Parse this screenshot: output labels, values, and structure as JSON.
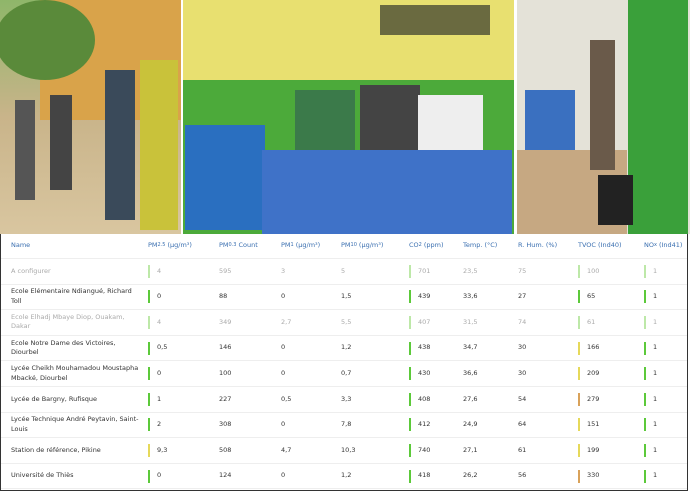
{
  "table": {
    "headers": [
      {
        "text": "Name"
      },
      {
        "text": "PM",
        "sub": "2.5",
        "unit": "(µg/m³)"
      },
      {
        "text": "PM",
        "sub": "0.3",
        "unit": "Count"
      },
      {
        "text": "PM",
        "sub": "1",
        "unit": "(µg/m³)"
      },
      {
        "text": "PM",
        "sub": "10",
        "unit": "(µg/m³)"
      },
      {
        "text": "CO",
        "sub": "2",
        "unit": "(ppm)"
      },
      {
        "text": "Temp. (°C)"
      },
      {
        "text": "R. Hum. (%)"
      },
      {
        "text": "TVOC (Ind40)"
      },
      {
        "text": "NO",
        "sub": "x",
        "unit": "(Ind41)"
      }
    ],
    "rows": [
      {
        "inactive": true,
        "cells": [
          "A configurer",
          {
            "v": "4",
            "color": "#bde8a8"
          },
          "595",
          "3",
          "5",
          {
            "v": "701",
            "color": "#bde8a8"
          },
          "23,5",
          "75",
          {
            "v": "100",
            "color": "#bde8a8"
          },
          {
            "v": "1",
            "color": "#bde8a8"
          }
        ]
      },
      {
        "cells": [
          "Ecole Elémentaire Ndiangué, Richard Toll",
          {
            "v": "0",
            "color": "#5cc93a"
          },
          "88",
          "0",
          "1,5",
          {
            "v": "439",
            "color": "#5cc93a"
          },
          "33,6",
          "27",
          {
            "v": "65",
            "color": "#5cc93a"
          },
          {
            "v": "1",
            "color": "#5cc93a"
          }
        ]
      },
      {
        "inactive": true,
        "cells": [
          "Ecole Elhadj Mbaye Diop, Ouakam, Dakar",
          {
            "v": "4",
            "color": "#bde8a8"
          },
          "349",
          "2,7",
          "5,5",
          {
            "v": "407",
            "color": "#bde8a8"
          },
          "31,5",
          "74",
          {
            "v": "61",
            "color": "#bde8a8"
          },
          {
            "v": "1",
            "color": "#bde8a8"
          }
        ]
      },
      {
        "cells": [
          "Ecole Notre Dame des Victoires, Diourbel",
          {
            "v": "0,5",
            "color": "#5cc93a"
          },
          "146",
          "0",
          "1,2",
          {
            "v": "438",
            "color": "#5cc93a"
          },
          "34,7",
          "30",
          {
            "v": "166",
            "color": "#e6d95a"
          },
          {
            "v": "1",
            "color": "#5cc93a"
          }
        ]
      },
      {
        "cells": [
          "Lycée Cheikh Mouhamadou Moustapha Mbacké, Diourbel",
          {
            "v": "0",
            "color": "#5cc93a"
          },
          "100",
          "0",
          "0,7",
          {
            "v": "430",
            "color": "#5cc93a"
          },
          "36,6",
          "30",
          {
            "v": "209",
            "color": "#e6d95a"
          },
          {
            "v": "1",
            "color": "#5cc93a"
          }
        ]
      },
      {
        "cells": [
          "Lycée de Bargny, Rufisque",
          {
            "v": "1",
            "color": "#5cc93a"
          },
          "227",
          "0,5",
          "3,3",
          {
            "v": "408",
            "color": "#5cc93a"
          },
          "27,6",
          "54",
          {
            "v": "279",
            "color": "#d9a25a"
          },
          {
            "v": "1",
            "color": "#5cc93a"
          }
        ]
      },
      {
        "cells": [
          "Lycée Technique André Peytavin, Saint-Louis",
          {
            "v": "2",
            "color": "#5cc93a"
          },
          "308",
          "0",
          "7,8",
          {
            "v": "412",
            "color": "#5cc93a"
          },
          "24,9",
          "64",
          {
            "v": "151",
            "color": "#e6d95a"
          },
          {
            "v": "1",
            "color": "#5cc93a"
          }
        ]
      },
      {
        "cells": [
          "Station de référence, Pikine",
          {
            "v": "9,3",
            "color": "#e6d95a"
          },
          "508",
          "4,7",
          "10,3",
          {
            "v": "740",
            "color": "#5cc93a"
          },
          "27,1",
          "61",
          {
            "v": "199",
            "color": "#e6d95a"
          },
          {
            "v": "1",
            "color": "#5cc93a"
          }
        ]
      },
      {
        "cells": [
          "Université de Thiès",
          {
            "v": "0",
            "color": "#5cc93a"
          },
          "124",
          "0",
          "1,2",
          {
            "v": "418",
            "color": "#5cc93a"
          },
          "26,2",
          "56",
          {
            "v": "330",
            "color": "#d9a25a"
          },
          {
            "v": "1",
            "color": "#5cc93a"
          }
        ]
      }
    ]
  }
}
